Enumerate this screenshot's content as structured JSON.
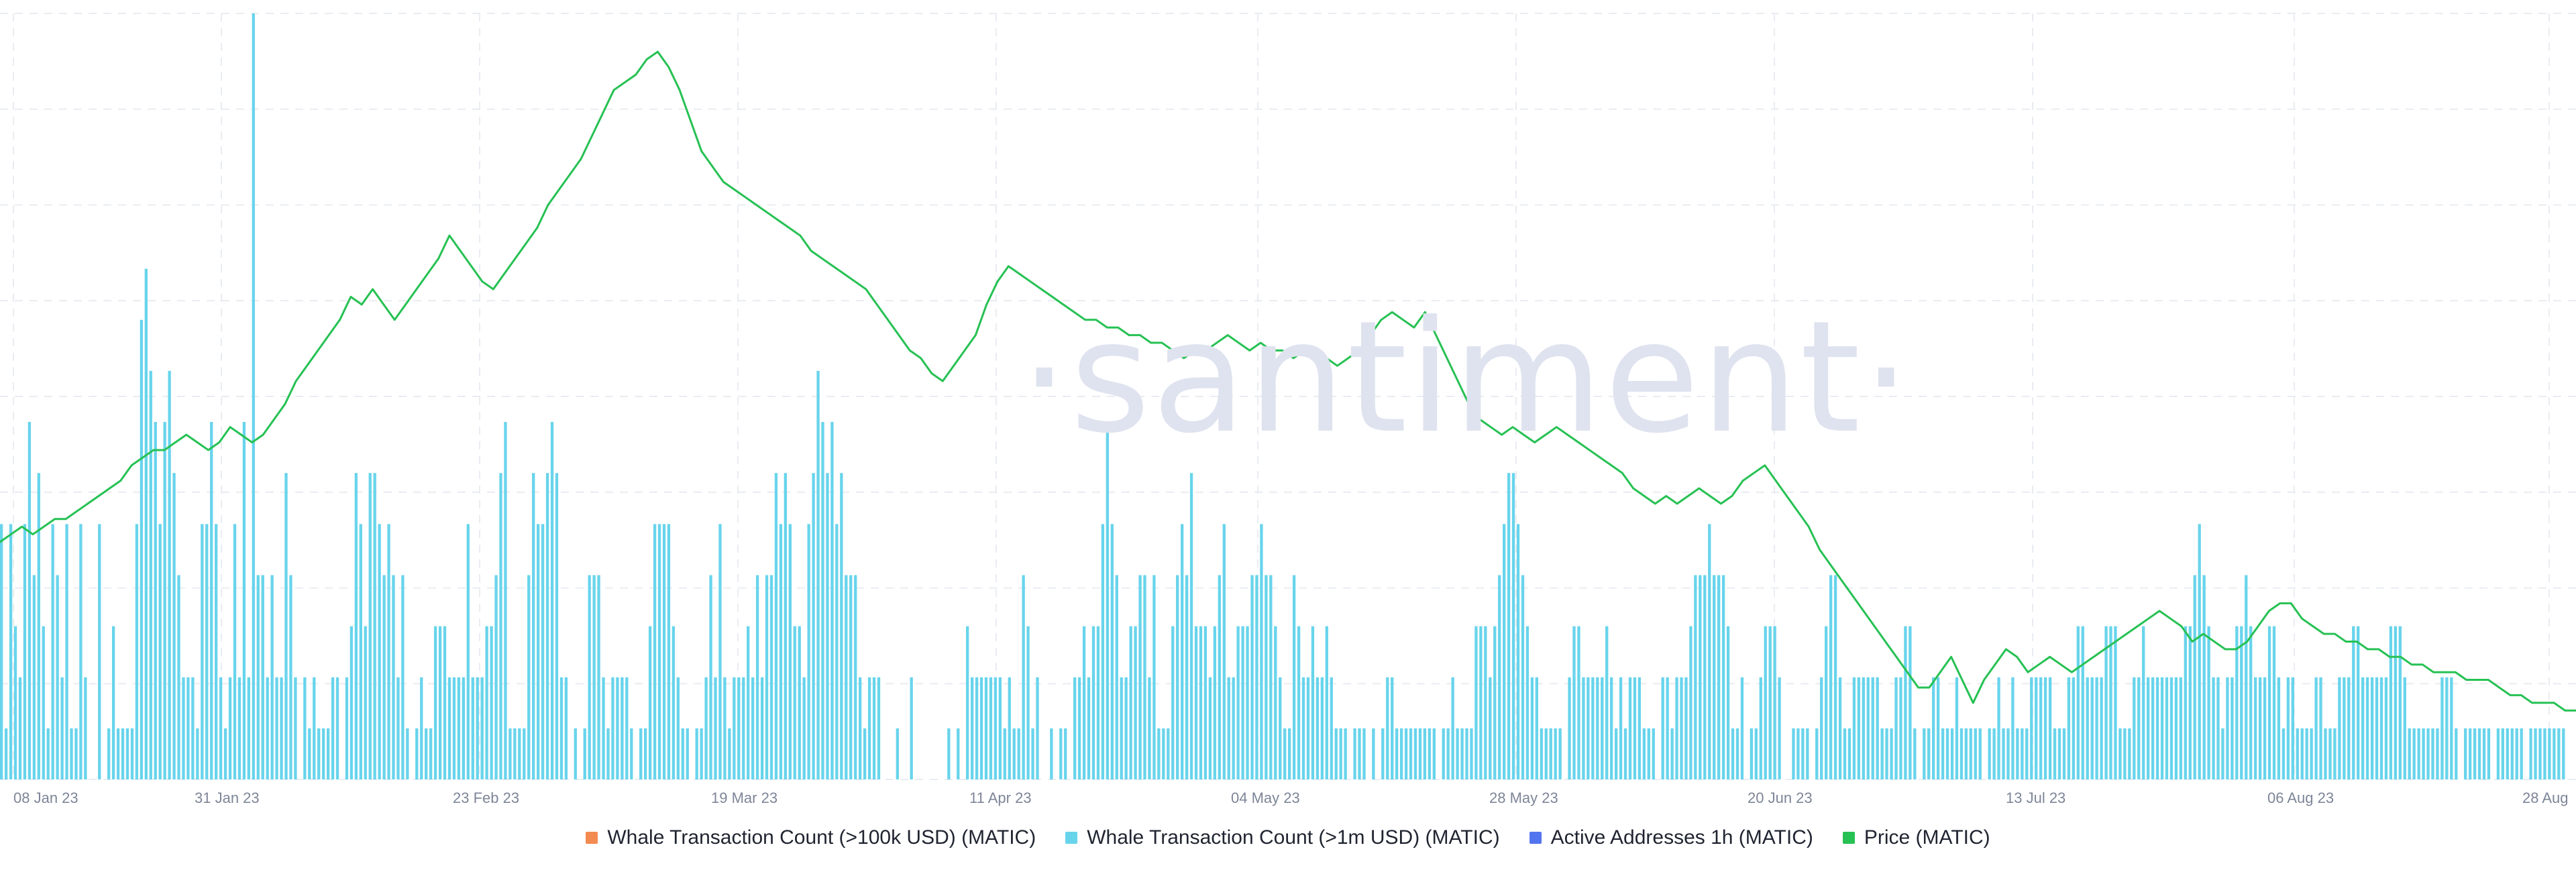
{
  "watermark": "·santiment·",
  "chart_data": {
    "type": "bar",
    "title": "",
    "xlabel": "",
    "ylabel": "",
    "x_tick_labels": [
      "08 Jan 23",
      "31 Jan 23",
      "23 Feb 23",
      "19 Mar 23",
      "11 Apr 23",
      "04 May 23",
      "28 May 23",
      "20 Jun 23",
      "13 Jul 23",
      "06 Aug 23",
      "28 Aug"
    ],
    "grid": true,
    "legend_position": "bottom",
    "legend": [
      {
        "name": "Whale Transaction Count (>100k USD) (MATIC)",
        "color": "#f38a50"
      },
      {
        "name": "Whale Transaction Count (>1m USD) (MATIC)",
        "color": "#68d4ec"
      },
      {
        "name": "Active Addresses 1h (MATIC)",
        "color": "#5275ef"
      },
      {
        "name": "Price (MATIC)",
        "color": "#26c153"
      }
    ],
    "series": [
      {
        "name": "Whale Transaction Count (>1m USD) (MATIC)",
        "type": "bar",
        "color": "#68d4ec",
        "values": [
          5,
          1,
          5,
          3,
          2,
          5,
          7,
          4,
          6,
          3,
          1,
          5,
          4,
          2,
          5,
          1,
          1,
          5,
          2,
          0,
          0,
          5,
          0,
          1,
          3,
          1,
          1,
          1,
          1,
          5,
          9,
          10,
          8,
          7,
          5,
          7,
          8,
          6,
          4,
          2,
          2,
          2,
          1,
          5,
          5,
          7,
          5,
          2,
          1,
          2,
          5,
          2,
          7,
          2,
          15,
          4,
          4,
          2,
          4,
          2,
          2,
          6,
          4,
          2,
          0,
          2,
          1,
          2,
          1,
          1,
          1,
          2,
          2,
          0,
          2,
          3,
          6,
          5,
          3,
          6,
          6,
          5,
          4,
          5,
          4,
          2,
          4,
          1,
          0,
          1,
          2,
          1,
          1,
          3,
          3,
          3,
          2,
          2,
          2,
          2,
          5,
          2,
          2,
          2,
          3,
          3,
          4,
          6,
          7,
          1,
          1,
          1,
          1,
          4,
          6,
          5,
          5,
          6,
          7,
          6,
          2,
          2,
          0,
          1,
          0,
          1,
          4,
          4,
          4,
          2,
          1,
          2,
          2,
          2,
          2,
          1,
          0,
          1,
          1,
          3,
          5,
          5,
          5,
          5,
          3,
          2,
          1,
          1,
          0,
          1,
          1,
          2,
          4,
          2,
          5,
          2,
          1,
          2,
          2,
          2,
          3,
          2,
          4,
          2,
          4,
          4,
          6,
          5,
          6,
          5,
          3,
          3,
          2,
          5,
          6,
          8,
          7,
          6,
          7,
          5,
          6,
          4,
          4,
          4,
          2,
          1,
          2,
          2,
          2,
          0,
          0,
          0,
          1,
          0,
          0,
          2,
          0,
          0,
          0,
          0,
          0,
          0,
          0,
          1,
          0,
          1,
          0,
          3,
          2,
          2,
          2,
          2,
          2,
          2,
          2,
          1,
          2,
          1,
          1,
          4,
          3,
          1,
          2,
          0,
          0,
          1,
          0,
          1,
          1,
          0,
          2,
          2,
          3,
          2,
          3,
          3,
          5,
          7,
          5,
          4,
          2,
          2,
          3,
          3,
          4,
          4,
          2,
          4,
          1,
          1,
          1,
          3,
          4,
          5,
          4,
          6,
          3,
          3,
          3,
          2,
          3,
          4,
          5,
          2,
          2,
          3,
          3,
          3,
          4,
          4,
          5,
          4,
          4,
          3,
          2,
          1,
          1,
          4,
          3,
          2,
          2,
          3,
          2,
          2,
          3,
          2,
          1,
          1,
          1,
          0,
          1,
          1,
          1,
          0,
          1,
          0,
          1,
          2,
          2,
          1,
          1,
          1,
          1,
          1,
          1,
          1,
          1,
          1,
          0,
          1,
          1,
          2,
          1,
          1,
          1,
          1,
          3,
          3,
          3,
          2,
          3,
          4,
          5,
          6,
          6,
          5,
          4,
          3,
          2,
          2,
          1,
          1,
          1,
          1,
          1,
          0,
          2,
          3,
          3,
          2,
          2,
          2,
          2,
          2,
          3,
          2,
          1,
          2,
          1,
          2,
          2,
          2,
          1,
          1,
          1,
          0,
          2,
          2,
          1,
          2,
          2,
          2,
          3,
          4,
          4,
          4,
          5,
          4,
          4,
          4,
          3,
          1,
          1,
          2,
          0,
          1,
          1,
          2,
          3,
          3,
          3,
          2,
          0,
          0,
          1,
          1,
          1,
          1,
          0,
          1,
          2,
          3,
          4,
          4,
          2,
          1,
          1,
          2,
          2,
          2,
          2,
          2,
          2,
          1,
          1,
          1,
          2,
          2,
          3,
          3,
          1,
          0,
          1,
          1,
          2,
          2,
          1,
          1,
          1,
          2,
          1,
          1,
          1,
          1,
          1,
          0,
          1,
          1,
          2,
          1,
          1,
          2,
          1,
          1,
          1,
          2,
          2,
          2,
          2,
          2,
          1,
          1,
          1,
          2,
          2,
          3,
          3,
          2,
          2,
          2,
          2,
          3,
          3,
          3,
          1,
          1,
          1,
          2,
          2,
          3,
          2,
          2,
          2,
          2,
          2,
          2,
          2,
          2,
          3,
          3,
          4,
          5,
          4,
          3,
          2,
          2,
          1,
          2,
          2,
          3,
          3,
          4,
          3,
          2,
          2,
          2,
          3,
          3,
          2,
          1,
          2,
          2,
          1,
          1,
          1,
          1,
          2,
          2,
          1,
          1,
          1,
          2,
          2,
          2,
          3,
          3,
          2,
          2,
          2,
          2,
          2,
          2,
          3,
          3,
          3,
          2,
          1,
          1,
          1,
          1,
          1,
          1,
          1,
          2,
          2,
          2,
          1,
          0,
          1,
          1,
          1,
          1,
          1,
          1,
          0,
          1,
          1,
          1,
          1,
          1,
          1,
          0,
          1,
          1,
          1,
          1,
          1,
          1,
          1,
          1,
          0,
          0
        ]
      },
      {
        "name": "Price (MATIC)",
        "type": "line",
        "color": "#26c153",
        "values": [
          0.81,
          0.82,
          0.83,
          0.82,
          0.83,
          0.84,
          0.84,
          0.85,
          0.86,
          0.87,
          0.88,
          0.89,
          0.91,
          0.92,
          0.93,
          0.93,
          0.94,
          0.95,
          0.94,
          0.93,
          0.94,
          0.96,
          0.95,
          0.94,
          0.95,
          0.97,
          0.99,
          1.02,
          1.04,
          1.06,
          1.08,
          1.1,
          1.13,
          1.12,
          1.14,
          1.12,
          1.1,
          1.12,
          1.14,
          1.16,
          1.18,
          1.21,
          1.19,
          1.17,
          1.15,
          1.14,
          1.16,
          1.18,
          1.2,
          1.22,
          1.25,
          1.27,
          1.29,
          1.31,
          1.34,
          1.37,
          1.4,
          1.41,
          1.42,
          1.44,
          1.45,
          1.43,
          1.4,
          1.36,
          1.32,
          1.3,
          1.28,
          1.27,
          1.26,
          1.25,
          1.24,
          1.23,
          1.22,
          1.21,
          1.19,
          1.18,
          1.17,
          1.16,
          1.15,
          1.14,
          1.12,
          1.1,
          1.08,
          1.06,
          1.05,
          1.03,
          1.02,
          1.04,
          1.06,
          1.08,
          1.12,
          1.15,
          1.17,
          1.16,
          1.15,
          1.14,
          1.13,
          1.12,
          1.11,
          1.1,
          1.1,
          1.09,
          1.09,
          1.08,
          1.08,
          1.07,
          1.07,
          1.06,
          1.05,
          1.06,
          1.06,
          1.07,
          1.08,
          1.07,
          1.06,
          1.07,
          1.06,
          1.06,
          1.05,
          1.06,
          1.06,
          1.05,
          1.04,
          1.05,
          1.06,
          1.08,
          1.1,
          1.11,
          1.1,
          1.09,
          1.11,
          1.08,
          1.05,
          1.02,
          0.99,
          0.97,
          0.96,
          0.95,
          0.96,
          0.95,
          0.94,
          0.95,
          0.96,
          0.95,
          0.94,
          0.93,
          0.92,
          0.91,
          0.9,
          0.88,
          0.87,
          0.86,
          0.87,
          0.86,
          0.87,
          0.88,
          0.87,
          0.86,
          0.87,
          0.89,
          0.9,
          0.91,
          0.89,
          0.87,
          0.85,
          0.83,
          0.8,
          0.78,
          0.76,
          0.74,
          0.72,
          0.7,
          0.68,
          0.66,
          0.64,
          0.62,
          0.62,
          0.64,
          0.66,
          0.63,
          0.6,
          0.63,
          0.65,
          0.67,
          0.66,
          0.64,
          0.65,
          0.66,
          0.65,
          0.64,
          0.65,
          0.66,
          0.67,
          0.68,
          0.69,
          0.7,
          0.71,
          0.72,
          0.71,
          0.7,
          0.68,
          0.69,
          0.68,
          0.67,
          0.67,
          0.68,
          0.7,
          0.72,
          0.73,
          0.73,
          0.71,
          0.7,
          0.69,
          0.69,
          0.68,
          0.68,
          0.67,
          0.67,
          0.66,
          0.66,
          0.65,
          0.65,
          0.64,
          0.64,
          0.64,
          0.63,
          0.63,
          0.63,
          0.62,
          0.61,
          0.61,
          0.6,
          0.6,
          0.6,
          0.59,
          0.59
        ]
      }
    ],
    "bar_range": [
      0,
      15
    ],
    "price_range": [
      0.5,
      1.5
    ]
  }
}
